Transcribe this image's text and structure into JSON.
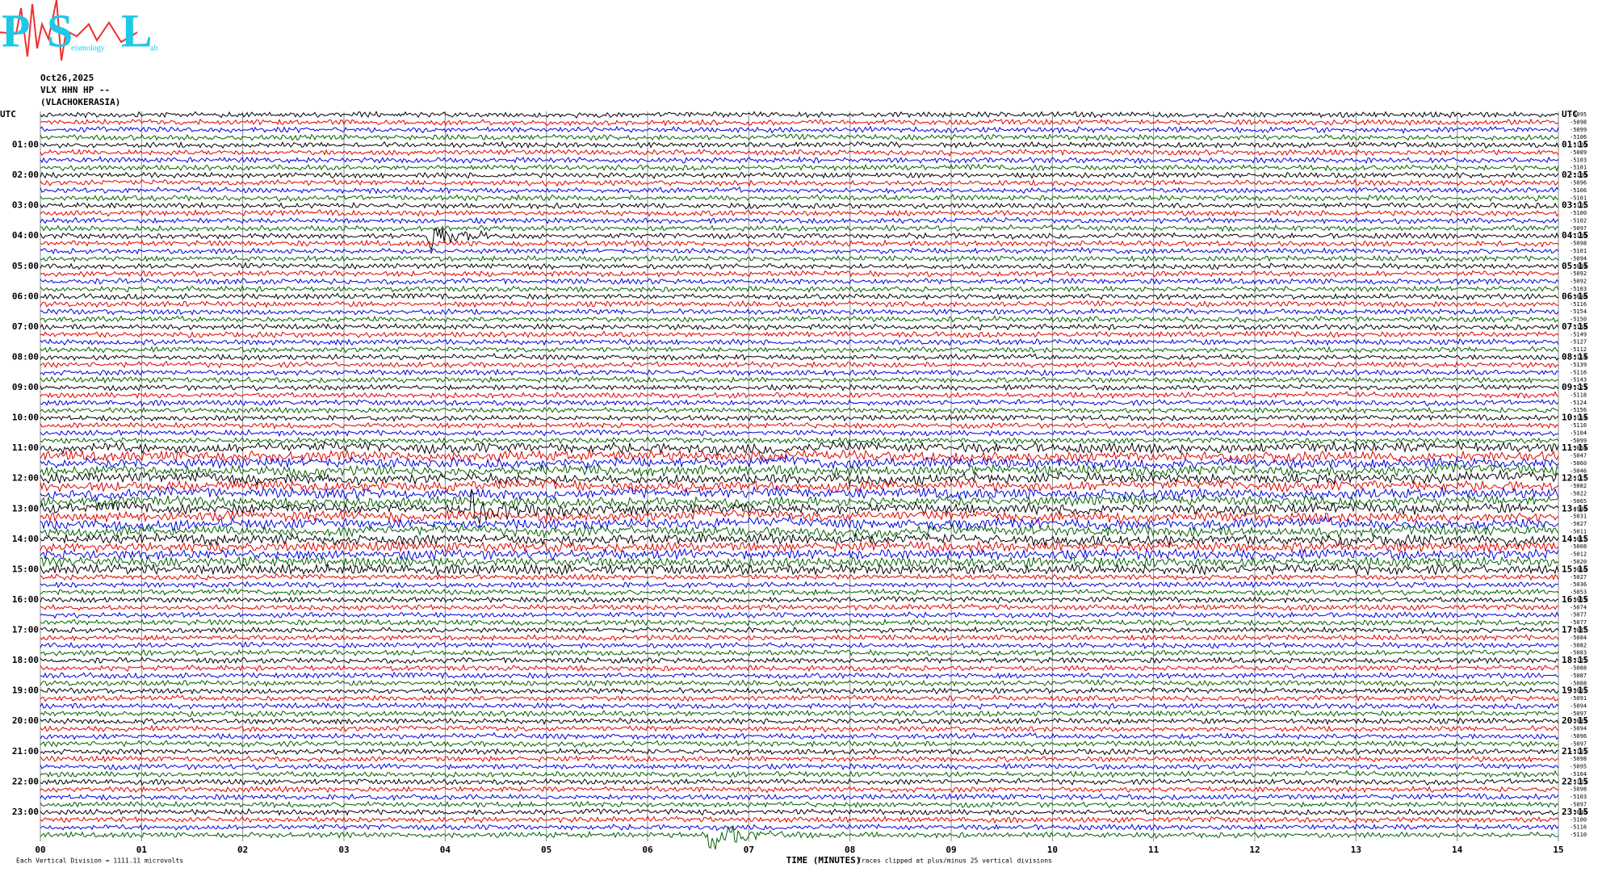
{
  "logo": {
    "letters": [
      "P",
      "S",
      "L"
    ],
    "small": [
      "eismology",
      "ab"
    ]
  },
  "header": {
    "date": "Oct26,2025",
    "station": "VLX HHN HP --",
    "location": "(VLACHOKERASIA)"
  },
  "left_labels": [
    "UTC",
    "01:00",
    "02:00",
    "03:00",
    "04:00",
    "05:00",
    "06:00",
    "07:00",
    "08:00",
    "09:00",
    "10:00",
    "11:00",
    "12:00",
    "13:00",
    "14:00",
    "15:00",
    "16:00",
    "17:00",
    "18:00",
    "19:00",
    "20:00",
    "21:00",
    "22:00",
    "23:00"
  ],
  "right_labels": [
    "UTC",
    "01:15",
    "02:15",
    "03:15",
    "04:15",
    "05:15",
    "06:15",
    "07:15",
    "08:15",
    "09:15",
    "10:15",
    "11:15",
    "12:15",
    "13:15",
    "14:15",
    "15:15",
    "16:15",
    "17:15",
    "18:15",
    "19:15",
    "20:15",
    "21:15",
    "22:15",
    "23:15"
  ],
  "offsets": [
    "-5095",
    "-5098",
    "-5099",
    "-5106",
    "-5106",
    "-5089",
    "-5103",
    "-5101",
    "-5100",
    "-5096",
    "-5106",
    "-5101",
    "-5102",
    "-5100",
    "-5102",
    "-5097",
    "-5100",
    "-5098",
    "-5101",
    "-5094",
    "-5094",
    "-5092",
    "-5092",
    "-5103",
    "-5098",
    "-5116",
    "-5154",
    "-5150",
    "-5158",
    "-5149",
    "-5127",
    "-5112",
    "-5114",
    "-5139",
    "-5116",
    "-5143",
    "-5123",
    "-5118",
    "-5124",
    "-5156",
    "-5114",
    "-5116",
    "-5104",
    "-5099",
    "-5064",
    "-5047",
    "-5060",
    "-5046",
    "-5117",
    "-5082",
    "-5022",
    "-5065",
    "-4998",
    "-5031",
    "-5027",
    "-5011",
    "-5012",
    "-5008",
    "-5012",
    "-5020",
    "-5016",
    "-5027",
    "-5036",
    "-5053",
    "-5063",
    "-5074",
    "-5077",
    "-5077",
    "-5087",
    "-5084",
    "-5082",
    "-5083",
    "-5101",
    "-5088",
    "-5087",
    "-5088",
    "-5091",
    "-5091",
    "-5094",
    "-5097",
    "-5093",
    "-5094",
    "-5096",
    "-5097",
    "-5101",
    "-5098",
    "-5095",
    "-5104",
    "-5103",
    "-5098",
    "-5103",
    "-5097",
    "-5098",
    "-5100",
    "-5116",
    "-5110"
  ],
  "x_ticks": [
    "00",
    "01",
    "02",
    "03",
    "04",
    "05",
    "06",
    "07",
    "08",
    "09",
    "10",
    "11",
    "12",
    "13",
    "14",
    "15"
  ],
  "footer": {
    "division": "Each Vertical Division = 1111.11 microvolts",
    "axis_title": "TIME (MINUTES)",
    "clip_note": "Traces clipped at plus/minus 25 vertical divisions"
  }
}
